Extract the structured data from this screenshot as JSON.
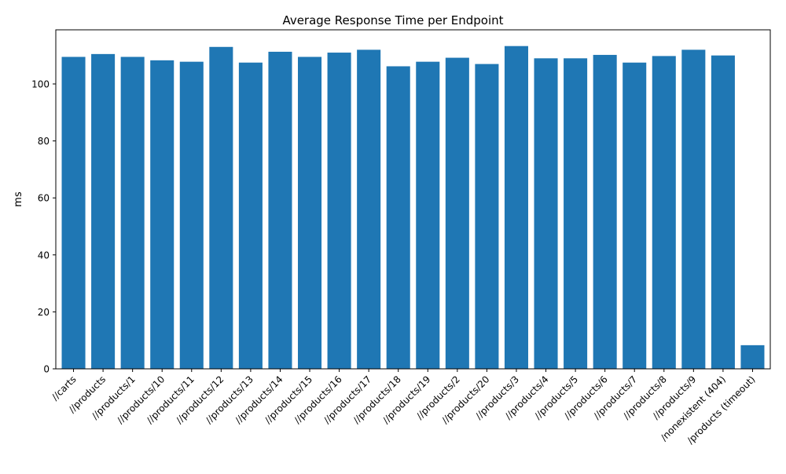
{
  "chart_data": {
    "type": "bar",
    "title": "Average Response Time per Endpoint",
    "xlabel": "",
    "ylabel": "ms",
    "ylim": [
      0,
      119
    ],
    "yticks": [
      0,
      20,
      40,
      60,
      80,
      100
    ],
    "grid": false,
    "legend": "none",
    "bar_color": "#1f77b4",
    "categories": [
      "//carts",
      "//products",
      "//products/1",
      "//products/10",
      "//products/11",
      "//products/12",
      "//products/13",
      "//products/14",
      "//products/15",
      "//products/16",
      "//products/17",
      "//products/18",
      "//products/19",
      "//products/2",
      "//products/20",
      "//products/3",
      "//products/4",
      "//products/5",
      "//products/6",
      "//products/7",
      "//products/8",
      "//products/9",
      "/nonexistent (404)",
      "/products (timeout)"
    ],
    "values": [
      109.5,
      110.5,
      109.5,
      108.3,
      107.8,
      113.0,
      107.5,
      111.3,
      109.5,
      111.0,
      112.0,
      106.2,
      107.8,
      109.2,
      107.0,
      113.3,
      109.0,
      109.0,
      110.2,
      107.5,
      109.8,
      112.0,
      110.0,
      8.3
    ]
  }
}
